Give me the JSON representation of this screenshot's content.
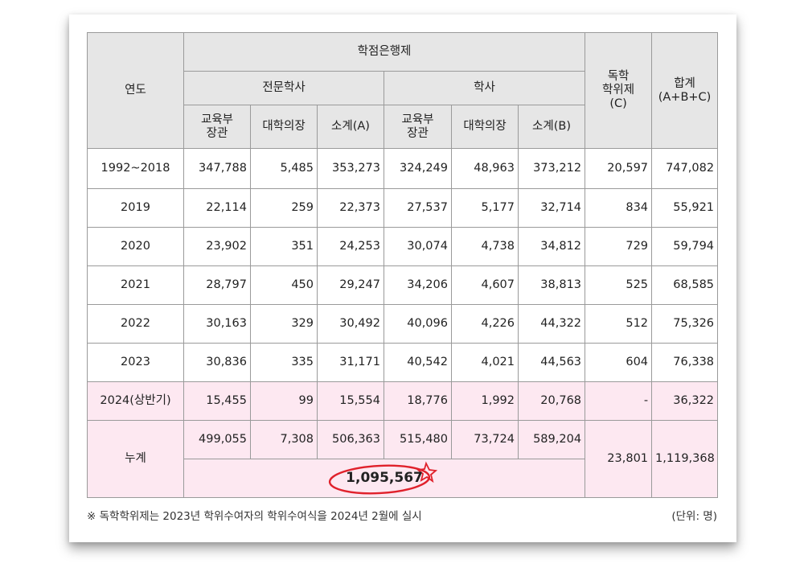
{
  "header": {
    "year": "연도",
    "credit_bank": "학점은행제",
    "associate": "전문학사",
    "bachelor": "학사",
    "self_study": "독학\n학위제\n(C)",
    "total": "합계\n(A+B+C)",
    "sub": {
      "edu_minister": "교육부\n장관",
      "univ_president": "대학의장",
      "subtotal_a": "소계(A)",
      "subtotal_b": "소계(B)"
    }
  },
  "rows": [
    {
      "year": "1992~2018",
      "a1": "347,788",
      "a2": "5,485",
      "a_sub": "353,273",
      "b1": "324,249",
      "b2": "48,963",
      "b_sub": "373,212",
      "c": "20,597",
      "total": "747,082"
    },
    {
      "year": "2019",
      "a1": "22,114",
      "a2": "259",
      "a_sub": "22,373",
      "b1": "27,537",
      "b2": "5,177",
      "b_sub": "32,714",
      "c": "834",
      "total": "55,921"
    },
    {
      "year": "2020",
      "a1": "23,902",
      "a2": "351",
      "a_sub": "24,253",
      "b1": "30,074",
      "b2": "4,738",
      "b_sub": "34,812",
      "c": "729",
      "total": "59,794"
    },
    {
      "year": "2021",
      "a1": "28,797",
      "a2": "450",
      "a_sub": "29,247",
      "b1": "34,206",
      "b2": "4,607",
      "b_sub": "38,813",
      "c": "525",
      "total": "68,585"
    },
    {
      "year": "2022",
      "a1": "30,163",
      "a2": "329",
      "a_sub": "30,492",
      "b1": "40,096",
      "b2": "4,226",
      "b_sub": "44,322",
      "c": "512",
      "total": "75,326"
    },
    {
      "year": "2023",
      "a1": "30,836",
      "a2": "335",
      "a_sub": "31,171",
      "b1": "40,542",
      "b2": "4,021",
      "b_sub": "44,563",
      "c": "604",
      "total": "76,338"
    },
    {
      "year": "2024(상반기)",
      "a1": "15,455",
      "a2": "99",
      "a_sub": "15,554",
      "b1": "18,776",
      "b2": "1,992",
      "b_sub": "20,768",
      "c": "-",
      "total": "36,322"
    }
  ],
  "cumulative": {
    "label": "누계",
    "a1": "499,055",
    "a2": "7,308",
    "a_sub": "506,363",
    "b1": "515,480",
    "b2": "73,724",
    "b_sub": "589,204",
    "c": "23,801",
    "total": "1,119,368",
    "credit_bank_total": "1,095,567"
  },
  "footnote": "※ 독학학위제는 2023년 학위수여자의 학위수여식을 2024년 2월에 실시",
  "unit": "(단위: 명)",
  "colors": {
    "header_bg": "#e6e6e6",
    "highlight_bg": "#fde8f1",
    "circle_red": "#e0212b"
  }
}
